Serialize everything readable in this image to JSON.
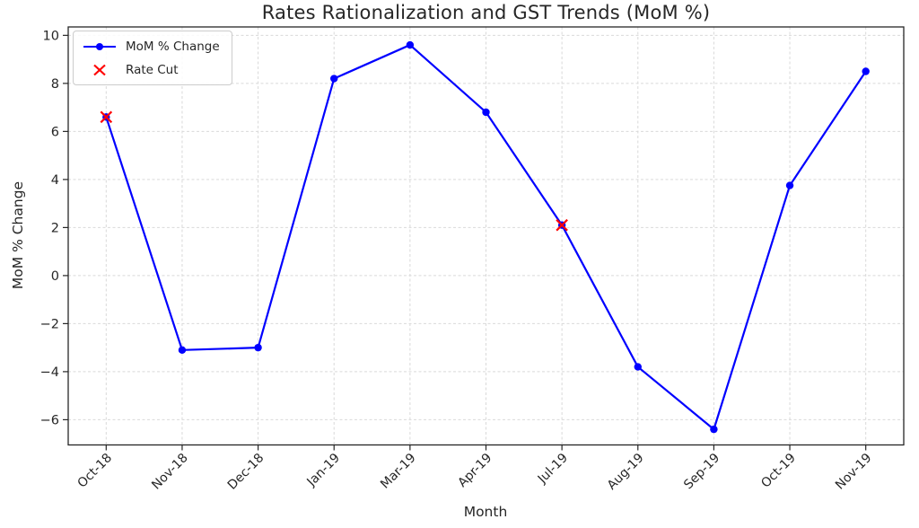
{
  "chart_data": {
    "type": "line",
    "title": "Rates Rationalization and GST Trends (MoM %)",
    "xlabel": "Month",
    "ylabel": "MoM % Change",
    "categories": [
      "Oct-18",
      "Nov-18",
      "Dec-18",
      "Jan-19",
      "Mar-19",
      "Apr-19",
      "Jul-19",
      "Aug-19",
      "Sep-19",
      "Oct-19",
      "Nov-19"
    ],
    "series": [
      {
        "name": "MoM % Change",
        "type": "line",
        "marker": "circle",
        "color": "#0000ff",
        "values": [
          6.6,
          -3.1,
          -3.0,
          8.2,
          9.6,
          6.8,
          2.1,
          -3.8,
          -6.4,
          3.75,
          8.5
        ]
      },
      {
        "name": "Rate Cut",
        "type": "scatter",
        "marker": "x",
        "color": "#ff0000",
        "points": [
          {
            "category": "Oct-18",
            "value": 6.6
          },
          {
            "category": "Jul-19",
            "value": 2.1
          }
        ]
      }
    ],
    "yticks": [
      10,
      8,
      6,
      4,
      2,
      0,
      -2,
      -4,
      -6
    ],
    "ylim": [
      -7.05,
      10.35
    ],
    "grid": true,
    "grid_color": "#d9d9d9",
    "axis_color": "#262626",
    "text_color": "#262626",
    "legend_position": "upper left"
  }
}
